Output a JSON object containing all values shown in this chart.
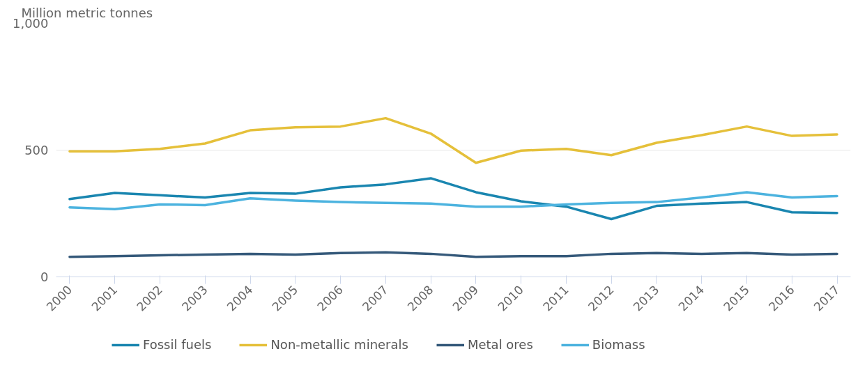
{
  "chart_data": {
    "type": "line",
    "ylabel": "Million metric tonnes",
    "categories": [
      "2000",
      "2001",
      "2002",
      "2003",
      "2004",
      "2005",
      "2006",
      "2007",
      "2008",
      "2009",
      "2010",
      "2011",
      "2012",
      "2013",
      "2014",
      "2015",
      "2016",
      "2017"
    ],
    "series": [
      {
        "name": "Fossil fuels",
        "color": "#1a86b0",
        "values": [
          307,
          331,
          322,
          313,
          331,
          328,
          353,
          365,
          389,
          334,
          298,
          277,
          228,
          280,
          289,
          295,
          255,
          252
        ]
      },
      {
        "name": "Non-metallic minerals",
        "color": "#e5c03a",
        "values": [
          495,
          495,
          505,
          526,
          578,
          590,
          593,
          626,
          565,
          450,
          498,
          505,
          480,
          529,
          559,
          593,
          556,
          562
        ]
      },
      {
        "name": "Metal ores",
        "color": "#35597a",
        "values": [
          79,
          82,
          85,
          88,
          91,
          88,
          94,
          97,
          91,
          79,
          82,
          82,
          91,
          94,
          91,
          94,
          88,
          91
        ]
      },
      {
        "name": "Biomass",
        "color": "#4cb3df",
        "values": [
          274,
          267,
          286,
          283,
          310,
          301,
          295,
          292,
          289,
          277,
          277,
          286,
          292,
          295,
          313,
          334,
          313,
          319
        ]
      }
    ],
    "ylim": [
      0,
      1000
    ],
    "yticks": [
      0,
      500,
      {
        "value": 1000,
        "label": "1,000"
      }
    ],
    "grid": "y",
    "legend": "bottom",
    "marker": "none",
    "line_style": "solid"
  }
}
